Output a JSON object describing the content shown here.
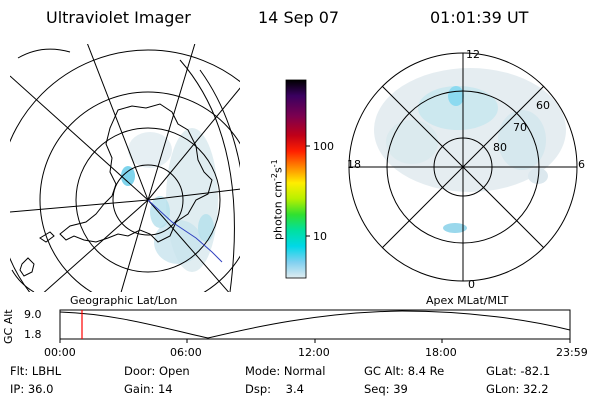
{
  "header": {
    "instrument": "Ultraviolet Imager",
    "date": "14 Sep 07",
    "time": "01:01:39 UT"
  },
  "left_panel": {
    "label": "Geographic Lat/Lon"
  },
  "right_panel": {
    "label": "Apex MLat/MLT",
    "mlt_labels": {
      "top": "12",
      "bottom": "0",
      "left": "18",
      "right": "6"
    },
    "lat_labels": [
      "60",
      "70",
      "80"
    ]
  },
  "colorbar": {
    "unit_label": "photon cm",
    "unit_sup1": "-2",
    "unit_mid": "s",
    "unit_sup2": "-1",
    "ticks": [
      "100",
      "10"
    ],
    "colors": [
      "#000000",
      "#3a0060",
      "#7a0050",
      "#c00018",
      "#ff2000",
      "#ff8800",
      "#ffee00",
      "#b8f000",
      "#30e030",
      "#00e0a0",
      "#00d8e8",
      "#80d0f0",
      "#d8e8f0"
    ]
  },
  "alt_plot": {
    "axis_label": "GC Alt",
    "y_ticks": [
      "9.0",
      "1.8"
    ],
    "x_ticks": [
      "00:00",
      "06:00",
      "12:00",
      "18:00",
      "23:59"
    ],
    "marker_time": "01:01",
    "marker_color": "#ff0000"
  },
  "info": {
    "flt_label": "Flt:",
    "flt_value": "LBHL",
    "door_label": "Door:",
    "door_value": "Open",
    "mode_label": "Mode:",
    "mode_value": "Normal",
    "gcalt_label": "GC Alt:",
    "gcalt_value": "8.4 Re",
    "glat_label": "GLat:",
    "glat_value": "-82.1",
    "ip_label": "IP:",
    "ip_value": "36.0",
    "gain_label": "Gain:",
    "gain_value": "14",
    "dsp_label": "Dsp:",
    "dsp_value": "3.4",
    "seq_label": "Seq:",
    "seq_value": "39",
    "glon_label": "GLon:",
    "glon_value": "32.2"
  }
}
